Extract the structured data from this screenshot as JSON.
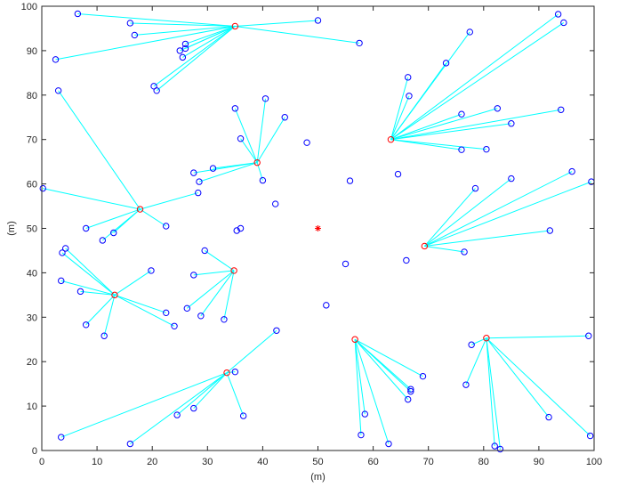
{
  "chart_data": {
    "type": "scatter",
    "title": "",
    "xlabel": "(m)",
    "ylabel": "(m)",
    "xlim": [
      0,
      100
    ],
    "ylim": [
      0,
      100
    ],
    "xticks": [
      0,
      10,
      20,
      30,
      40,
      50,
      60,
      70,
      80,
      90,
      100
    ],
    "yticks": [
      0,
      10,
      20,
      30,
      40,
      50,
      60,
      70,
      80,
      90,
      100
    ],
    "grid": false,
    "colors": {
      "node": "#0000ff",
      "cluster_head": "#ff0000",
      "link": "#00ffff",
      "base_station": "#ff0000",
      "axis": "#262626"
    },
    "base_station": {
      "x": 50,
      "y": 50
    },
    "clusters": [
      {
        "head": [
          35,
          95.5
        ],
        "members": [
          [
            6.5,
            98.3
          ],
          [
            16,
            96.2
          ],
          [
            16.8,
            93.5
          ],
          [
            26,
            91.5
          ],
          [
            26,
            90.5
          ],
          [
            25,
            90
          ],
          [
            25.5,
            88.5
          ],
          [
            2.5,
            88
          ],
          [
            20.3,
            82
          ],
          [
            20.8,
            81
          ],
          [
            50,
            96.8
          ],
          [
            57.5,
            91.7
          ]
        ]
      },
      {
        "head": [
          63.2,
          70
        ],
        "members": [
          [
            77.5,
            94.2
          ],
          [
            73.2,
            87.2
          ],
          [
            66.3,
            84
          ],
          [
            66.5,
            79.8
          ],
          [
            93.5,
            98.2
          ],
          [
            94.5,
            96.3
          ],
          [
            82.5,
            77
          ],
          [
            94,
            76.7
          ],
          [
            76,
            75.7
          ],
          [
            85,
            73.6
          ],
          [
            76,
            67.7
          ],
          [
            80.5,
            67.8
          ]
        ]
      },
      {
        "head": [
          39,
          64.8
        ],
        "members": [
          [
            35,
            77
          ],
          [
            40.5,
            79.2
          ],
          [
            44,
            75
          ],
          [
            36,
            70.2
          ],
          [
            27.5,
            62.5
          ],
          [
            31,
            63.5
          ],
          [
            28.5,
            60.5
          ],
          [
            40,
            60.8
          ]
        ]
      },
      {
        "head": [
          17.8,
          54.3
        ],
        "members": [
          [
            3,
            81
          ],
          [
            0.2,
            59
          ],
          [
            28.3,
            58
          ],
          [
            22.5,
            50.5
          ],
          [
            8,
            50
          ],
          [
            13,
            49
          ],
          [
            11,
            47.3
          ]
        ]
      },
      {
        "head": [
          69.3,
          46
        ],
        "members": [
          [
            78.5,
            59
          ],
          [
            85,
            61.2
          ],
          [
            96,
            62.8
          ],
          [
            99.5,
            60.5
          ],
          [
            92,
            49.5
          ],
          [
            76.5,
            44.7
          ]
        ]
      },
      {
        "head": [
          13.2,
          35
        ],
        "members": [
          [
            4.3,
            45.5
          ],
          [
            3.7,
            44.5
          ],
          [
            3.5,
            38.2
          ],
          [
            7,
            35.8
          ],
          [
            8,
            28.3
          ],
          [
            11.3,
            25.8
          ],
          [
            19.8,
            40.5
          ],
          [
            22.5,
            31
          ],
          [
            24,
            28
          ]
        ]
      },
      {
        "head": [
          34.8,
          40.5
        ],
        "members": [
          [
            29.5,
            45
          ],
          [
            27.5,
            39.5
          ],
          [
            26.3,
            32
          ],
          [
            28.8,
            30.3
          ],
          [
            33,
            29.5
          ]
        ]
      },
      {
        "head": [
          33.5,
          17.5
        ],
        "members": [
          [
            42.5,
            27
          ],
          [
            35,
            17.7
          ],
          [
            36.5,
            7.8
          ],
          [
            27.5,
            9.5
          ],
          [
            24.5,
            8
          ],
          [
            16,
            1.5
          ],
          [
            3.5,
            3
          ]
        ]
      },
      {
        "head": [
          56.7,
          25
        ],
        "members": [
          [
            69,
            16.7
          ],
          [
            66.8,
            13.8
          ],
          [
            66.8,
            13.3
          ],
          [
            66.3,
            11.5
          ],
          [
            58.5,
            8.2
          ],
          [
            57.8,
            3.5
          ],
          [
            62.8,
            1.5
          ]
        ]
      },
      {
        "head": [
          80.5,
          25.3
        ],
        "members": [
          [
            99,
            25.8
          ],
          [
            77.8,
            23.8
          ],
          [
            76.8,
            14.8
          ],
          [
            91.8,
            7.5
          ],
          [
            99.3,
            3.3
          ],
          [
            82,
            1
          ],
          [
            83,
            0.3
          ]
        ]
      }
    ],
    "unassigned": [
      [
        48,
        69.3
      ],
      [
        55.8,
        60.7
      ],
      [
        64.5,
        62.2
      ],
      [
        42.3,
        55.5
      ],
      [
        35.3,
        49.5
      ],
      [
        36,
        50
      ],
      [
        55,
        42
      ],
      [
        66,
        42.8
      ],
      [
        51.5,
        32.7
      ]
    ]
  }
}
